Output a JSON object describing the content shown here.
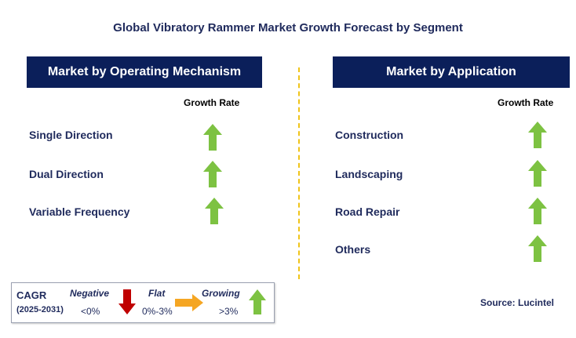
{
  "title": "Global Vibratory Rammer Market Growth Forecast by Segment",
  "left_panel": {
    "header": "Market by Operating Mechanism",
    "growth_label": "Growth Rate",
    "segments": [
      {
        "label": "Single Direction",
        "trend": "growing"
      },
      {
        "label": "Dual Direction",
        "trend": "growing"
      },
      {
        "label": "Variable Frequency",
        "trend": "growing"
      }
    ]
  },
  "right_panel": {
    "header": "Market by Application",
    "growth_label": "Growth Rate",
    "segments": [
      {
        "label": "Construction",
        "trend": "growing"
      },
      {
        "label": "Landscaping",
        "trend": "growing"
      },
      {
        "label": "Road Repair",
        "trend": "growing"
      },
      {
        "label": "Others",
        "trend": "growing"
      }
    ]
  },
  "legend": {
    "cagr_label": "CAGR",
    "period": "(2025-2031)",
    "negative_label": "Negative",
    "negative_range": "<0%",
    "flat_label": "Flat",
    "flat_range": "0%-3%",
    "growing_label": "Growing",
    "growing_range": ">3%"
  },
  "source": "Source: Lucintel",
  "colors": {
    "header_bg": "#0b1f5a",
    "growing": "#7dc242",
    "negative": "#c00000",
    "flat": "#f5a623",
    "divider": "#f0c419"
  }
}
